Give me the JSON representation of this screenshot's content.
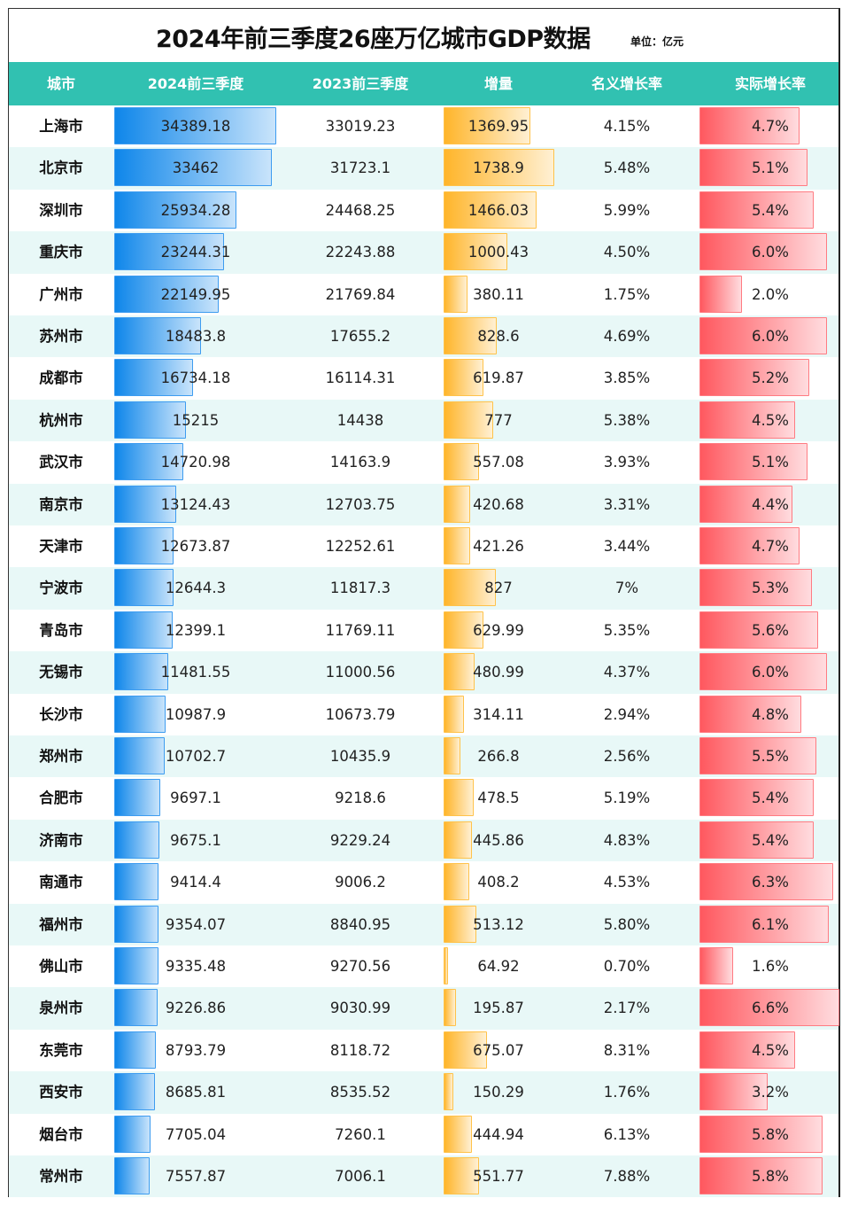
{
  "title": "2024年前三季度26座万亿城市GDP数据",
  "unit": "单位：亿元",
  "header": {
    "city": "城市",
    "gdp2024": "2024前三季度",
    "gdp2023": "2023前三季度",
    "increase": "增量",
    "nominal_growth": "名义增长率",
    "real_growth": "实际增长率"
  },
  "colors": {
    "header_bg": "#31c1b1",
    "row_alt_bg": "#e8f8f7",
    "bar_blue": "#0e86ea",
    "bar_orange": "#ffb52a",
    "bar_red": "#ff585f"
  },
  "rows": [
    {
      "city": "上海市",
      "gdp2024": "34389.18",
      "gdp2023": "33019.23",
      "increase": "1369.95",
      "nominal": "4.15%",
      "real": "4.7%"
    },
    {
      "city": "北京市",
      "gdp2024": "33462",
      "gdp2023": "31723.1",
      "increase": "1738.9",
      "nominal": "5.48%",
      "real": "5.1%"
    },
    {
      "city": "深圳市",
      "gdp2024": "25934.28",
      "gdp2023": "24468.25",
      "increase": "1466.03",
      "nominal": "5.99%",
      "real": "5.4%"
    },
    {
      "city": "重庆市",
      "gdp2024": "23244.31",
      "gdp2023": "22243.88",
      "increase": "1000.43",
      "nominal": "4.50%",
      "real": "6.0%"
    },
    {
      "city": "广州市",
      "gdp2024": "22149.95",
      "gdp2023": "21769.84",
      "increase": "380.11",
      "nominal": "1.75%",
      "real": "2.0%"
    },
    {
      "city": "苏州市",
      "gdp2024": "18483.8",
      "gdp2023": "17655.2",
      "increase": "828.6",
      "nominal": "4.69%",
      "real": "6.0%"
    },
    {
      "city": "成都市",
      "gdp2024": "16734.18",
      "gdp2023": "16114.31",
      "increase": "619.87",
      "nominal": "3.85%",
      "real": "5.2%"
    },
    {
      "city": "杭州市",
      "gdp2024": "15215",
      "gdp2023": "14438",
      "increase": "777",
      "nominal": "5.38%",
      "real": "4.5%"
    },
    {
      "city": "武汉市",
      "gdp2024": "14720.98",
      "gdp2023": "14163.9",
      "increase": "557.08",
      "nominal": "3.93%",
      "real": "5.1%"
    },
    {
      "city": "南京市",
      "gdp2024": "13124.43",
      "gdp2023": "12703.75",
      "increase": "420.68",
      "nominal": "3.31%",
      "real": "4.4%"
    },
    {
      "city": "天津市",
      "gdp2024": "12673.87",
      "gdp2023": "12252.61",
      "increase": "421.26",
      "nominal": "3.44%",
      "real": "4.7%"
    },
    {
      "city": "宁波市",
      "gdp2024": "12644.3",
      "gdp2023": "11817.3",
      "increase": "827",
      "nominal": "7%",
      "real": "5.3%"
    },
    {
      "city": "青岛市",
      "gdp2024": "12399.1",
      "gdp2023": "11769.11",
      "increase": "629.99",
      "nominal": "5.35%",
      "real": "5.6%"
    },
    {
      "city": "无锡市",
      "gdp2024": "11481.55",
      "gdp2023": "11000.56",
      "increase": "480.99",
      "nominal": "4.37%",
      "real": "6.0%"
    },
    {
      "city": "长沙市",
      "gdp2024": "10987.9",
      "gdp2023": "10673.79",
      "increase": "314.11",
      "nominal": "2.94%",
      "real": "4.8%"
    },
    {
      "city": "郑州市",
      "gdp2024": "10702.7",
      "gdp2023": "10435.9",
      "increase": "266.8",
      "nominal": "2.56%",
      "real": "5.5%"
    },
    {
      "city": "合肥市",
      "gdp2024": "9697.1",
      "gdp2023": "9218.6",
      "increase": "478.5",
      "nominal": "5.19%",
      "real": "5.4%"
    },
    {
      "city": "济南市",
      "gdp2024": "9675.1",
      "gdp2023": "9229.24",
      "increase": "445.86",
      "nominal": "4.83%",
      "real": "5.4%"
    },
    {
      "city": "南通市",
      "gdp2024": "9414.4",
      "gdp2023": "9006.2",
      "increase": "408.2",
      "nominal": "4.53%",
      "real": "6.3%"
    },
    {
      "city": "福州市",
      "gdp2024": "9354.07",
      "gdp2023": "8840.95",
      "increase": "513.12",
      "nominal": "5.80%",
      "real": "6.1%"
    },
    {
      "city": "佛山市",
      "gdp2024": "9335.48",
      "gdp2023": "9270.56",
      "increase": "64.92",
      "nominal": "0.70%",
      "real": "1.6%"
    },
    {
      "city": "泉州市",
      "gdp2024": "9226.86",
      "gdp2023": "9030.99",
      "increase": "195.87",
      "nominal": "2.17%",
      "real": "6.6%"
    },
    {
      "city": "东莞市",
      "gdp2024": "8793.79",
      "gdp2023": "8118.72",
      "increase": "675.07",
      "nominal": "8.31%",
      "real": "4.5%"
    },
    {
      "city": "西安市",
      "gdp2024": "8685.81",
      "gdp2023": "8535.52",
      "increase": "150.29",
      "nominal": "1.76%",
      "real": "3.2%"
    },
    {
      "city": "烟台市",
      "gdp2024": "7705.04",
      "gdp2023": "7260.1",
      "increase": "444.94",
      "nominal": "6.13%",
      "real": "5.8%"
    },
    {
      "city": "常州市",
      "gdp2024": "7557.87",
      "gdp2023": "7006.1",
      "increase": "551.77",
      "nominal": "7.88%",
      "real": "5.8%"
    }
  ],
  "chart_data": {
    "type": "table",
    "title": "2024年前三季度26座万亿城市GDP数据",
    "subtitle": "单位：亿元",
    "columns": [
      "城市",
      "2024前三季度",
      "2023前三季度",
      "增量",
      "名义增长率",
      "实际增长率"
    ],
    "categories": [
      "上海市",
      "北京市",
      "深圳市",
      "重庆市",
      "广州市",
      "苏州市",
      "成都市",
      "杭州市",
      "武汉市",
      "南京市",
      "天津市",
      "宁波市",
      "青岛市",
      "无锡市",
      "长沙市",
      "郑州市",
      "合肥市",
      "济南市",
      "南通市",
      "福州市",
      "佛山市",
      "泉州市",
      "东莞市",
      "西安市",
      "烟台市",
      "常州市"
    ],
    "series": [
      {
        "name": "2024前三季度",
        "values": [
          34389.18,
          33462,
          25934.28,
          23244.31,
          22149.95,
          18483.8,
          16734.18,
          15215,
          14720.98,
          13124.43,
          12673.87,
          12644.3,
          12399.1,
          11481.55,
          10987.9,
          10702.7,
          9697.1,
          9675.1,
          9414.4,
          9354.07,
          9335.48,
          9226.86,
          8793.79,
          8685.81,
          7705.04,
          7557.87
        ],
        "display": "data-bar"
      },
      {
        "name": "2023前三季度",
        "values": [
          33019.23,
          31723.1,
          24468.25,
          22243.88,
          21769.84,
          17655.2,
          16114.31,
          14438,
          14163.9,
          12703.75,
          12252.61,
          11817.3,
          11769.11,
          11000.56,
          10673.79,
          10435.9,
          9218.6,
          9229.24,
          9006.2,
          8840.95,
          9270.56,
          9030.99,
          8118.72,
          8535.52,
          7260.1,
          7006.1
        ],
        "display": "text"
      },
      {
        "name": "增量",
        "values": [
          1369.95,
          1738.9,
          1466.03,
          1000.43,
          380.11,
          828.6,
          619.87,
          777,
          557.08,
          420.68,
          421.26,
          827,
          629.99,
          480.99,
          314.11,
          266.8,
          478.5,
          445.86,
          408.2,
          513.12,
          64.92,
          195.87,
          675.07,
          150.29,
          444.94,
          551.77
        ],
        "display": "data-bar"
      },
      {
        "name": "名义增长率",
        "values": [
          4.15,
          5.48,
          5.99,
          4.5,
          1.75,
          4.69,
          3.85,
          5.38,
          3.93,
          3.31,
          3.44,
          7,
          5.35,
          4.37,
          2.94,
          2.56,
          5.19,
          4.83,
          4.53,
          5.8,
          0.7,
          2.17,
          8.31,
          1.76,
          6.13,
          7.88
        ],
        "unit": "%",
        "display": "text"
      },
      {
        "name": "实际增长率",
        "values": [
          4.7,
          5.1,
          5.4,
          6.0,
          2.0,
          6.0,
          5.2,
          4.5,
          5.1,
          4.4,
          4.7,
          5.3,
          5.6,
          6.0,
          4.8,
          5.5,
          5.4,
          5.4,
          6.3,
          6.1,
          1.6,
          6.6,
          4.5,
          3.2,
          5.8,
          5.8
        ],
        "unit": "%",
        "display": "data-bar"
      }
    ]
  }
}
